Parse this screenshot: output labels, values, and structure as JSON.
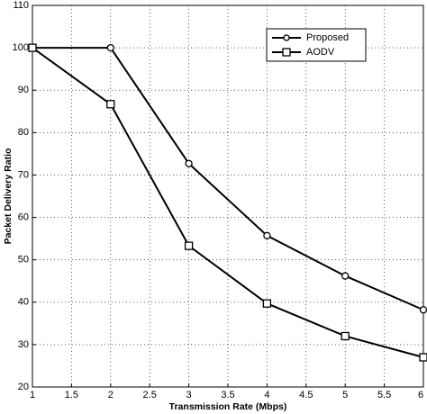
{
  "chart_data": {
    "type": "line",
    "x_label": "Transmission Rate (Mbps)",
    "y_label": "Packet Delivery Ratio",
    "x": [
      1,
      2,
      3,
      4,
      5,
      6
    ],
    "series": [
      {
        "name": "Proposed",
        "color": "#000000",
        "marker": "circle",
        "values": [
          100,
          100,
          72.7,
          55.7,
          46.2,
          38.2
        ]
      },
      {
        "name": "AODV",
        "color": "#000000",
        "marker": "square",
        "values": [
          100,
          86.7,
          53.3,
          39.7,
          32,
          27
        ]
      }
    ],
    "xlim": [
      1,
      6
    ],
    "xticks": [
      1,
      1.5,
      2,
      2.5,
      3,
      3.5,
      4,
      4.5,
      5,
      5.5,
      6
    ],
    "ylim": [
      20,
      110
    ],
    "yticks": [
      20,
      30,
      40,
      50,
      60,
      70,
      80,
      90,
      100,
      110
    ],
    "grid": true,
    "legend": "upper right"
  }
}
